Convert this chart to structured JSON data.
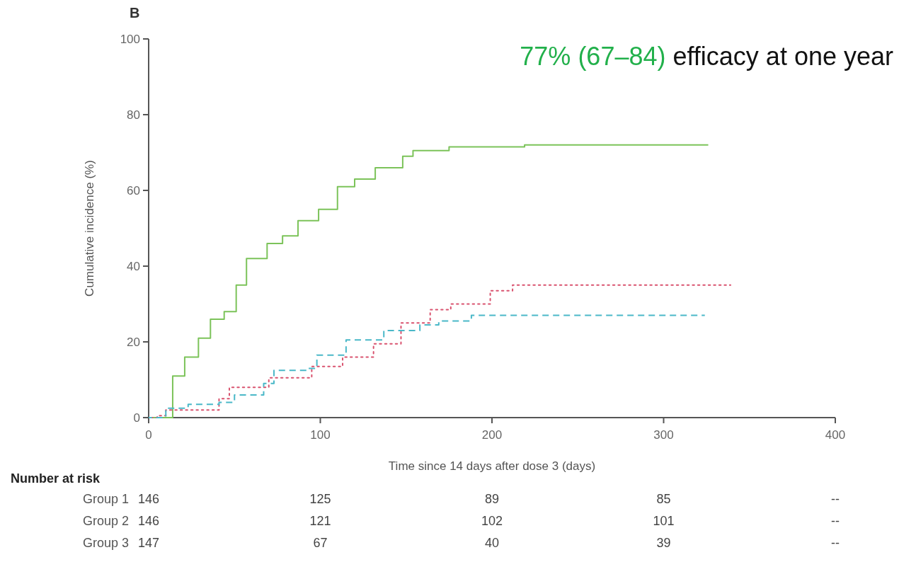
{
  "chart_data": {
    "type": "step",
    "title": "B",
    "xlabel": "Time since 14 days after dose 3 (days)",
    "ylabel": "Cumulative incidence (%)",
    "xlim": [
      0,
      400
    ],
    "xticks": [
      0,
      100,
      200,
      300,
      400
    ],
    "ylim": [
      0,
      100
    ],
    "yticks": [
      0,
      20,
      40,
      60,
      80,
      100
    ],
    "grid": false,
    "series": [
      {
        "color": "#7cc35a",
        "line_style": "solid",
        "x": [
          0,
          14,
          21,
          29,
          36,
          44,
          51,
          57,
          69,
          78,
          87,
          99,
          110,
          120,
          132,
          148,
          154,
          175,
          219,
          326
        ],
        "values": [
          0,
          11,
          16,
          21,
          26,
          28,
          35,
          42,
          46,
          48,
          52,
          55,
          61,
          63,
          66,
          69,
          70.5,
          71.5,
          72,
          72
        ]
      },
      {
        "color": "#d9536f",
        "line_style": "dotted",
        "x": [
          0,
          5,
          10,
          41,
          47,
          70,
          95,
          113,
          131,
          147,
          164,
          176,
          199,
          212,
          339
        ],
        "values": [
          0,
          0.5,
          2,
          5,
          8,
          10.5,
          13.5,
          16,
          19.5,
          25,
          28.5,
          30,
          33.5,
          35,
          35
        ]
      },
      {
        "color": "#4ab8c8",
        "line_style": "dashed",
        "x": [
          0,
          10,
          23,
          41,
          50,
          67,
          73,
          92,
          98,
          115,
          137,
          158,
          169,
          188,
          324
        ],
        "values": [
          0,
          2.5,
          3.5,
          4,
          6,
          9,
          12.5,
          13,
          16.5,
          20.5,
          23,
          24.5,
          25.5,
          27,
          27
        ]
      }
    ],
    "annotations": [
      "77% (67–84)",
      " efficacy at one year",
      "Number at risk",
      "Group 1",
      "146",
      "125",
      "89",
      "85",
      "--",
      "Group 2",
      "146",
      "121",
      "102",
      "101",
      "--",
      "Group 3",
      "147",
      "67",
      "40",
      "39",
      "--"
    ]
  }
}
